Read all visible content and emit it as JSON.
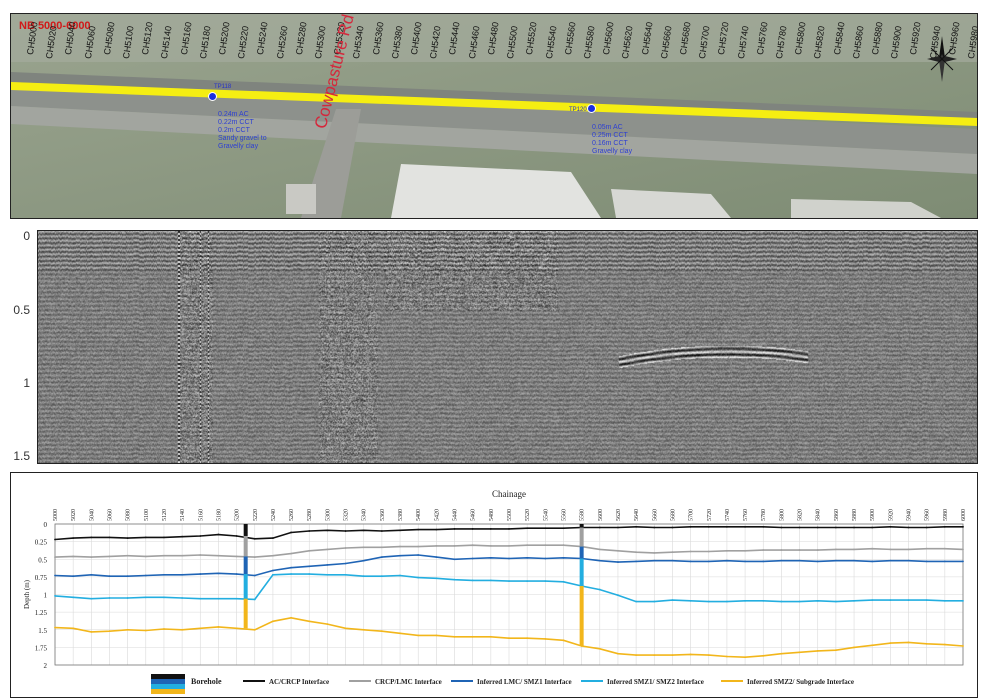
{
  "map": {
    "title": "NB 5000-6000",
    "road_label": "Cowpasture Rd",
    "chainage_labels": [
      "CH5000",
      "CH5020",
      "CH5040",
      "CH5060",
      "CH5080",
      "CH5100",
      "CH5120",
      "CH5140",
      "CH5160",
      "CH5180",
      "CH5200",
      "CH5220",
      "CH5240",
      "CH5260",
      "CH5280",
      "CH5300",
      "CH5320",
      "CH5340",
      "CH5360",
      "CH5380",
      "CH5400",
      "CH5420",
      "CH5440",
      "CH5460",
      "CH5480",
      "CH5500",
      "CH5520",
      "CH5540",
      "CH5560",
      "CH5580",
      "CH5600",
      "CH5620",
      "CH5640",
      "CH5660",
      "CH5680",
      "CH5700",
      "CH5720",
      "CH5740",
      "CH5760",
      "CH5780",
      "CH5800",
      "CH5820",
      "CH5840",
      "CH5860",
      "CH5880",
      "CH5900",
      "CH5920",
      "CH5940",
      "CH5960",
      "CH5980"
    ],
    "test_pits": [
      {
        "id": "TP118",
        "notes": [
          "0.24m AC",
          "0.22m CCT",
          "0.2m CCT",
          "Sandy gravel to",
          "Gravelly clay"
        ]
      },
      {
        "id": "TP120",
        "notes": [
          "0.05m AC",
          "0.25m CCT",
          "0.16m CCT",
          "Gravelly clay"
        ]
      }
    ],
    "colors": {
      "alignment": "#f5ee12",
      "label": "#d11919",
      "road_label": "#d4283c",
      "test_pit": "#1b2fe0"
    },
    "icons": [
      "north-arrow-icon",
      "test-pit-marker-icon"
    ]
  },
  "radargram": {
    "depth_ticks": [
      "0",
      "0.5",
      "1",
      "1.5"
    ],
    "depth_range": [
      0,
      1.55
    ]
  },
  "chart_data": {
    "type": "line",
    "title": "Chainage",
    "ylabel": "Depth (m)",
    "xlim": [
      5000,
      6000
    ],
    "ylim": [
      0,
      2
    ],
    "ylim_reversed": true,
    "grid": true,
    "legend_position": "bottom",
    "x_ticks": [
      5000,
      5020,
      5040,
      5060,
      5080,
      5100,
      5120,
      5140,
      5160,
      5180,
      5200,
      5220,
      5240,
      5260,
      5280,
      5300,
      5320,
      5340,
      5360,
      5380,
      5400,
      5420,
      5440,
      5460,
      5480,
      5500,
      5520,
      5540,
      5560,
      5580,
      5600,
      5620,
      5640,
      5660,
      5680,
      5700,
      5720,
      5740,
      5760,
      5780,
      5800,
      5820,
      5840,
      5860,
      5880,
      5900,
      5920,
      5940,
      5960,
      5980,
      6000
    ],
    "y_ticks": [
      "0",
      "0.25",
      "0.5",
      "0.75",
      "1",
      "1.25",
      "1.5",
      "1.75",
      "2"
    ],
    "y_tick_values": [
      0,
      0.25,
      0.5,
      0.75,
      1,
      1.25,
      1.5,
      1.75,
      2
    ],
    "x": [
      5000,
      5020,
      5040,
      5060,
      5080,
      5100,
      5120,
      5140,
      5160,
      5180,
      5200,
      5220,
      5240,
      5260,
      5280,
      5300,
      5320,
      5340,
      5360,
      5380,
      5400,
      5420,
      5440,
      5460,
      5480,
      5500,
      5520,
      5540,
      5560,
      5580,
      5600,
      5620,
      5640,
      5660,
      5680,
      5700,
      5720,
      5740,
      5760,
      5780,
      5800,
      5820,
      5840,
      5860,
      5880,
      5900,
      5920,
      5940,
      5960,
      5980,
      6000
    ],
    "series": [
      {
        "name": "AC/CRCP Interface",
        "color": "#111111",
        "values": [
          0.22,
          0.2,
          0.19,
          0.19,
          0.2,
          0.19,
          0.19,
          0.18,
          0.17,
          0.15,
          0.17,
          0.21,
          0.2,
          0.12,
          0.1,
          0.09,
          0.1,
          0.09,
          0.1,
          0.09,
          0.08,
          0.08,
          0.07,
          0.07,
          0.07,
          0.07,
          0.06,
          0.06,
          0.06,
          0.05,
          0.05,
          0.05,
          0.04,
          0.05,
          0.05,
          0.04,
          0.04,
          0.04,
          0.04,
          0.04,
          0.05,
          0.05,
          0.05,
          0.05,
          0.05,
          0.05,
          0.04,
          0.05,
          0.05,
          0.04,
          0.04
        ]
      },
      {
        "name": "CRCP/LMC Interface",
        "color": "#a0a0a0",
        "values": [
          0.47,
          0.46,
          0.47,
          0.46,
          0.45,
          0.46,
          0.45,
          0.45,
          0.44,
          0.45,
          0.46,
          0.47,
          0.45,
          0.42,
          0.38,
          0.36,
          0.34,
          0.33,
          0.33,
          0.32,
          0.32,
          0.31,
          0.31,
          0.3,
          0.31,
          0.31,
          0.3,
          0.3,
          0.3,
          0.32,
          0.36,
          0.38,
          0.4,
          0.41,
          0.4,
          0.39,
          0.39,
          0.38,
          0.38,
          0.37,
          0.37,
          0.37,
          0.37,
          0.36,
          0.36,
          0.35,
          0.36,
          0.36,
          0.35,
          0.35,
          0.36
        ]
      },
      {
        "name": "Inferred LMC/ SMZ1 Interface",
        "color": "#1f64b5",
        "values": [
          0.73,
          0.74,
          0.72,
          0.74,
          0.74,
          0.73,
          0.72,
          0.72,
          0.71,
          0.7,
          0.71,
          0.73,
          0.66,
          0.62,
          0.6,
          0.58,
          0.56,
          0.52,
          0.47,
          0.45,
          0.44,
          0.47,
          0.5,
          0.49,
          0.48,
          0.49,
          0.48,
          0.49,
          0.48,
          0.49,
          0.52,
          0.54,
          0.53,
          0.52,
          0.52,
          0.53,
          0.53,
          0.52,
          0.53,
          0.53,
          0.52,
          0.52,
          0.53,
          0.52,
          0.52,
          0.53,
          0.52,
          0.52,
          0.53,
          0.53,
          0.53
        ]
      },
      {
        "name": "Inferred SMZ1/ SMZ2 Interface",
        "color": "#23aee0",
        "values": [
          1.02,
          1.04,
          1.06,
          1.05,
          1.05,
          1.04,
          1.04,
          1.05,
          1.06,
          1.06,
          1.06,
          1.07,
          0.72,
          0.71,
          0.71,
          0.72,
          0.72,
          0.74,
          0.74,
          0.73,
          0.76,
          0.77,
          0.79,
          0.8,
          0.8,
          0.81,
          0.81,
          0.81,
          0.82,
          0.88,
          0.93,
          1.01,
          1.1,
          1.1,
          1.08,
          1.09,
          1.1,
          1.1,
          1.09,
          1.09,
          1.1,
          1.1,
          1.09,
          1.1,
          1.09,
          1.08,
          1.08,
          1.08,
          1.08,
          1.09,
          1.09
        ]
      },
      {
        "name": "Inferred SMZ2/ Subgrade Interface",
        "color": "#f2b61b",
        "values": [
          1.47,
          1.48,
          1.53,
          1.52,
          1.5,
          1.51,
          1.49,
          1.5,
          1.48,
          1.46,
          1.48,
          1.5,
          1.38,
          1.33,
          1.38,
          1.42,
          1.48,
          1.5,
          1.52,
          1.55,
          1.58,
          1.58,
          1.6,
          1.6,
          1.6,
          1.62,
          1.62,
          1.63,
          1.65,
          1.73,
          1.77,
          1.84,
          1.86,
          1.86,
          1.86,
          1.85,
          1.86,
          1.88,
          1.89,
          1.87,
          1.84,
          1.82,
          1.8,
          1.79,
          1.75,
          1.72,
          1.69,
          1.68,
          1.7,
          1.71,
          1.73
        ]
      }
    ],
    "boreholes": [
      {
        "x": 5210
      },
      {
        "x": 5580
      }
    ],
    "legend": [
      "Borehole",
      "AC/CRCP Interface",
      "CRCP/LMC Interface",
      "Inferred LMC/ SMZ1 Interface",
      "Inferred SMZ1/ SMZ2 Interface",
      "Inferred SMZ2/ Subgrade Interface"
    ]
  }
}
